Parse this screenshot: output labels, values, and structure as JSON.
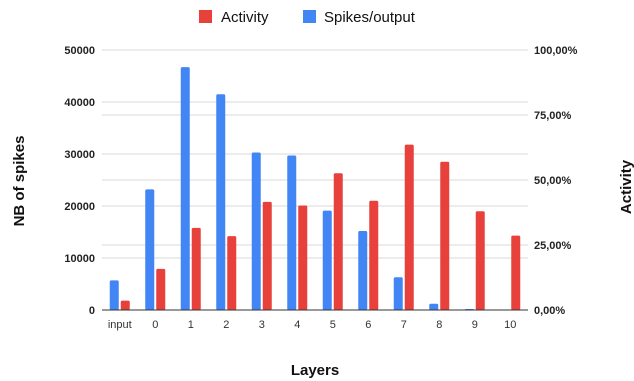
{
  "chart_data": {
    "type": "bar",
    "title": "",
    "xlabel": "Layers",
    "ylabel": "NB of spikes",
    "y2label": "Activity",
    "categories": [
      "input",
      "0",
      "1",
      "2",
      "3",
      "4",
      "5",
      "6",
      "7",
      "8",
      "9",
      "10"
    ],
    "series": [
      {
        "name": "Activity",
        "axis": "right",
        "color": "#e8413b",
        "values": [
          3.6,
          15.8,
          31.6,
          28.4,
          41.6,
          40.2,
          52.6,
          42.0,
          63.6,
          57.0,
          38.0,
          28.6
        ]
      },
      {
        "name": "Spikes/output",
        "axis": "left",
        "color": "#4285f4",
        "values": [
          5700,
          23200,
          46700,
          41500,
          30300,
          29700,
          19100,
          15200,
          6300,
          1200,
          200,
          0
        ]
      }
    ],
    "ylim": [
      0,
      50000
    ],
    "y2lim": [
      0,
      100
    ],
    "yticks": [
      "0",
      "10000",
      "20000",
      "30000",
      "40000",
      "50000"
    ],
    "y2ticks": [
      "0,00%",
      "25,00%",
      "50,00%",
      "75,00%",
      "100,00%"
    ],
    "grid": true,
    "legend": "top-center"
  }
}
